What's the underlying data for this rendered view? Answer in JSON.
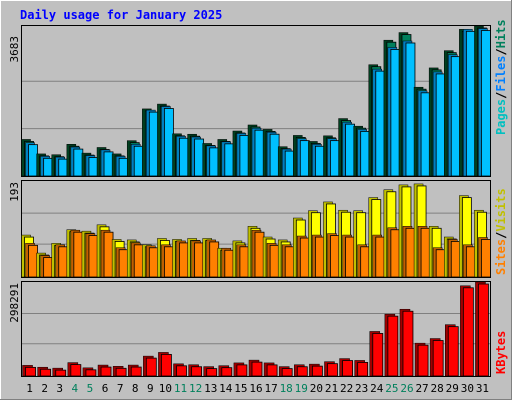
{
  "colors": {
    "background": "#c0c0c0",
    "title": "#0000ff",
    "hits_dark": "#008040",
    "hits": "#00805c",
    "files_front": "#00c0ff",
    "files_side": "#0080c0",
    "pages_front": "#00e0ff",
    "visits_front": "#ffff00",
    "visits_side": "#c0c000",
    "sites_front": "#ff8000",
    "sites_side": "#c06000",
    "kbytes_front": "#ff0000",
    "kbytes_side": "#a00000",
    "day_label": "#000000",
    "weekend_label": "#00805c",
    "grid": "#808080"
  },
  "chart_data": [
    {
      "type": "bar",
      "title": "Daily usage for January 2025",
      "categories": [
        "1",
        "2",
        "3",
        "4",
        "5",
        "6",
        "7",
        "8",
        "9",
        "10",
        "11",
        "12",
        "13",
        "14",
        "15",
        "16",
        "17",
        "18",
        "19",
        "20",
        "21",
        "22",
        "23",
        "24",
        "25",
        "26",
        "27",
        "28",
        "29",
        "30",
        "31"
      ],
      "weekend_categories": [
        "4",
        "5",
        "11",
        "12",
        "18",
        "19",
        "25",
        "26"
      ],
      "ymax_label": "3683",
      "ylim": [
        0,
        3683
      ],
      "legend": [
        "Pages",
        "/",
        "Files",
        "/",
        "Hits"
      ],
      "series": [
        {
          "name": "Hits",
          "values": [
            860,
            500,
            480,
            740,
            520,
            660,
            500,
            830,
            1620,
            1740,
            1000,
            990,
            760,
            860,
            1070,
            1220,
            1110,
            680,
            960,
            810,
            950,
            1380,
            1190,
            2720,
            3330,
            3520,
            2160,
            2640,
            3070,
            3600,
            3683
          ]
        },
        {
          "name": "Files",
          "values": [
            780,
            440,
            420,
            670,
            460,
            600,
            440,
            740,
            1590,
            1680,
            940,
            920,
            700,
            800,
            1010,
            1140,
            1040,
            620,
            880,
            740,
            880,
            1290,
            1110,
            2610,
            3150,
            3310,
            2070,
            2540,
            2970,
            3600,
            3620
          ]
        }
      ]
    },
    {
      "type": "bar",
      "ymax_label": "193",
      "ylim": [
        0,
        193
      ],
      "legend": [
        "Sites",
        "/",
        "Visits"
      ],
      "series": [
        {
          "name": "Visits",
          "values": [
            82,
            45,
            65,
            93,
            90,
            103,
            73,
            72,
            62,
            75,
            73,
            75,
            75,
            55,
            70,
            100,
            78,
            72,
            117,
            132,
            150,
            133,
            132,
            159,
            175,
            185,
            187,
            100,
            78,
            163,
            133
          ]
        },
        {
          "name": "Sites",
          "values": [
            65,
            40,
            62,
            92,
            85,
            92,
            56,
            66,
            60,
            62,
            70,
            70,
            72,
            55,
            62,
            92,
            65,
            62,
            80,
            82,
            85,
            82,
            62,
            82,
            97,
            100,
            100,
            56,
            73,
            62,
            77
          ]
        }
      ]
    },
    {
      "type": "bar",
      "ymax_label": "298291",
      "ylim": [
        0,
        298291
      ],
      "legend": [
        "KBytes"
      ],
      "series": [
        {
          "name": "KBytes",
          "values": [
            28000,
            22000,
            19000,
            37000,
            20000,
            29000,
            25000,
            29000,
            58000,
            70000,
            33000,
            30000,
            24000,
            27000,
            36000,
            45000,
            36000,
            24000,
            30000,
            32000,
            40000,
            50000,
            44000,
            138000,
            194000,
            210000,
            100000,
            115000,
            160000,
            286000,
            298291
          ]
        }
      ]
    }
  ]
}
